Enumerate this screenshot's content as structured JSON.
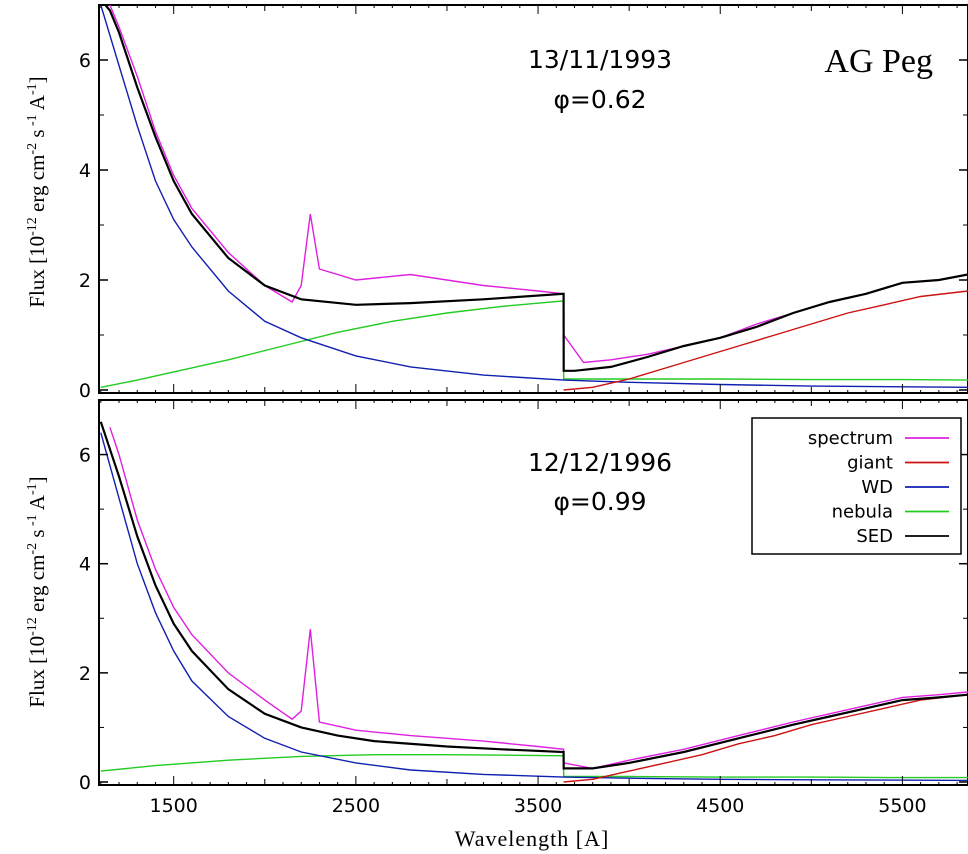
{
  "chart_data": {
    "type": "line",
    "star_label": "AG Peg",
    "xlabel": "Wavelength [A]",
    "xlim": [
      1090,
      5860
    ],
    "x_ticks": [
      1500,
      2500,
      3500,
      4500,
      5500
    ],
    "legend": {
      "placement": "top-right of lower panel",
      "entries": [
        {
          "label": "spectrum",
          "color": "#e020e0"
        },
        {
          "label": "giant",
          "color": "#cc1111"
        },
        {
          "label": "WD",
          "color": "#1020b0"
        },
        {
          "label": "nebula",
          "color": "#22cc22"
        },
        {
          "label": "SED",
          "color": "#000000"
        }
      ]
    },
    "panels": [
      {
        "date": "13/11/1993",
        "phase": "φ=0.62",
        "ylabel": "Flux [10^-12 erg cm^-2 s^-1 A^-1]",
        "ylim": [
          0,
          7
        ],
        "y_ticks": [
          0,
          2,
          4,
          6
        ],
        "series": [
          {
            "name": "SED",
            "color": "#000000",
            "x": [
              1100,
              1150,
              1200,
              1300,
              1400,
              1500,
              1600,
              1800,
              2000,
              2200,
              2500,
              2800,
              3200,
              3640,
              3641,
              3700,
              3900,
              4100,
              4300,
              4500,
              4700,
              4900,
              5100,
              5300,
              5500,
              5700,
              5860
            ],
            "y": [
              7.1,
              6.9,
              6.5,
              5.5,
              4.6,
              3.8,
              3.2,
              2.4,
              1.9,
              1.65,
              1.55,
              1.58,
              1.65,
              1.75,
              0.35,
              0.35,
              0.42,
              0.6,
              0.8,
              0.95,
              1.15,
              1.4,
              1.6,
              1.75,
              1.95,
              2.0,
              2.1
            ]
          },
          {
            "name": "WD",
            "color": "#1020b0",
            "x": [
              1100,
              1200,
              1300,
              1400,
              1500,
              1600,
              1800,
              2000,
              2200,
              2500,
              2800,
              3200,
              3640,
              4000,
              4500,
              5000,
              5860
            ],
            "y": [
              7.0,
              5.9,
              4.8,
              3.8,
              3.1,
              2.6,
              1.8,
              1.25,
              0.95,
              0.62,
              0.42,
              0.27,
              0.18,
              0.14,
              0.1,
              0.07,
              0.05
            ]
          },
          {
            "name": "nebula",
            "color": "#22cc22",
            "x": [
              1100,
              1300,
              1500,
              1800,
              2100,
              2400,
              2700,
              3000,
              3300,
              3640,
              3641,
              4000,
              4500,
              5000,
              5500,
              5860
            ],
            "y": [
              0.05,
              0.18,
              0.33,
              0.55,
              0.8,
              1.05,
              1.25,
              1.4,
              1.52,
              1.62,
              0.2,
              0.2,
              0.2,
              0.19,
              0.19,
              0.18
            ]
          },
          {
            "name": "giant",
            "color": "#cc1111",
            "x": [
              3640,
              3800,
              4000,
              4200,
              4400,
              4600,
              4800,
              5000,
              5200,
              5400,
              5600,
              5860
            ],
            "y": [
              0.0,
              0.05,
              0.2,
              0.4,
              0.6,
              0.8,
              1.0,
              1.2,
              1.4,
              1.55,
              1.7,
              1.8
            ]
          },
          {
            "name": "spectrum",
            "color": "#e020e0",
            "x": [
              1150,
              1200,
              1300,
              1400,
              1500,
              1600,
              1800,
              2000,
              2150,
              2200,
              2250,
              2300,
              2500,
              2800,
              3200,
              3500,
              3640,
              3641,
              3750,
              3900,
              4100,
              4300,
              4500,
              4700,
              4900,
              5100,
              5300,
              5500,
              5700,
              5860
            ],
            "y": [
              7.0,
              6.6,
              5.7,
              4.7,
              3.9,
              3.3,
              2.5,
              1.9,
              1.6,
              1.9,
              3.2,
              2.2,
              2.0,
              2.1,
              1.9,
              1.8,
              1.75,
              1.0,
              0.5,
              0.55,
              0.65,
              0.8,
              0.95,
              1.2,
              1.4,
              1.6,
              1.75,
              1.95,
              2.0,
              2.1
            ]
          }
        ]
      },
      {
        "date": "12/12/1996",
        "phase": "φ=0.99",
        "ylabel": "Flux [10^-12 erg cm^-2 s^-1 A^-1]",
        "ylim": [
          0,
          7
        ],
        "y_ticks": [
          0,
          2,
          4,
          6
        ],
        "series": [
          {
            "name": "SED",
            "color": "#000000",
            "x": [
              1100,
              1200,
              1300,
              1400,
              1500,
              1600,
              1800,
              2000,
              2200,
              2400,
              2600,
              3000,
              3300,
              3640,
              3641,
              3800,
              4000,
              4300,
              4600,
              4900,
              5100,
              5300,
              5500,
              5700,
              5860
            ],
            "y": [
              6.6,
              5.6,
              4.5,
              3.6,
              2.9,
              2.4,
              1.7,
              1.25,
              1.0,
              0.85,
              0.75,
              0.65,
              0.6,
              0.55,
              0.25,
              0.25,
              0.35,
              0.55,
              0.8,
              1.05,
              1.2,
              1.35,
              1.5,
              1.55,
              1.6
            ]
          },
          {
            "name": "WD",
            "color": "#1020b0",
            "x": [
              1100,
              1200,
              1300,
              1400,
              1500,
              1600,
              1800,
              2000,
              2200,
              2500,
              2800,
              3200,
              3640,
              4000,
              4500,
              5000,
              5860
            ],
            "y": [
              6.4,
              5.2,
              4.0,
              3.1,
              2.4,
              1.85,
              1.2,
              0.8,
              0.55,
              0.35,
              0.22,
              0.14,
              0.09,
              0.07,
              0.05,
              0.04,
              0.03
            ]
          },
          {
            "name": "nebula",
            "color": "#22cc22",
            "x": [
              1100,
              1400,
              1800,
              2200,
              2600,
              3000,
              3400,
              3640,
              3641,
              4000,
              4500,
              5000,
              5500,
              5860
            ],
            "y": [
              0.2,
              0.3,
              0.4,
              0.47,
              0.5,
              0.5,
              0.49,
              0.48,
              0.1,
              0.1,
              0.09,
              0.09,
              0.08,
              0.08
            ]
          },
          {
            "name": "giant",
            "color": "#cc1111",
            "x": [
              3640,
              3800,
              4000,
              4200,
              4400,
              4600,
              4800,
              5000,
              5200,
              5400,
              5600,
              5860
            ],
            "y": [
              0.0,
              0.05,
              0.2,
              0.35,
              0.5,
              0.7,
              0.85,
              1.05,
              1.2,
              1.35,
              1.5,
              1.6
            ]
          },
          {
            "name": "spectrum",
            "color": "#e020e0",
            "x": [
              1150,
              1200,
              1300,
              1400,
              1500,
              1600,
              1800,
              2000,
              2150,
              2200,
              2250,
              2300,
              2500,
              2800,
              3200,
              3500,
              3640,
              3641,
              3800,
              4000,
              4300,
              4600,
              4900,
              5100,
              5300,
              5500,
              5700,
              5860
            ],
            "y": [
              6.5,
              6.0,
              4.8,
              3.9,
              3.2,
              2.7,
              2.0,
              1.5,
              1.15,
              1.3,
              2.8,
              1.1,
              0.95,
              0.85,
              0.75,
              0.65,
              0.6,
              0.35,
              0.25,
              0.4,
              0.6,
              0.85,
              1.1,
              1.25,
              1.4,
              1.55,
              1.6,
              1.65
            ]
          }
        ]
      }
    ]
  }
}
